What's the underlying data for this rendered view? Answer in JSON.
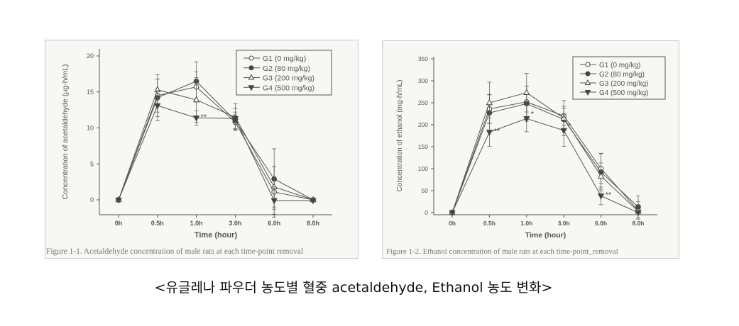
{
  "chart_data": [
    {
      "type": "line",
      "x": [
        "0h",
        "0.5h",
        "1.0h",
        "3.0h",
        "6.0h",
        "8.0h"
      ],
      "xlabel": "Time (hour)",
      "ylabel": "Concentration of acetaldehyde (μg-h/mL)",
      "ylim": [
        -2,
        21
      ],
      "yticks": [
        0,
        5,
        10,
        15,
        20
      ],
      "legend_position": "top-right",
      "caption": "Figure 1-1. Acetaldehyde concentration of male rats at each time-point removal",
      "series": [
        {
          "name": "G1 (0 mg/kg)",
          "marker": "circle-open",
          "values": [
            0,
            14.5,
            15.7,
            10.8,
            1.1,
            0
          ],
          "error": [
            0,
            2.3,
            2.1,
            1.0,
            3.5,
            0
          ]
        },
        {
          "name": "G2 (80 mg/kg)",
          "marker": "circle-filled",
          "values": [
            0,
            14.2,
            16.5,
            11.0,
            2.9,
            0
          ],
          "error": [
            0,
            2.6,
            2.7,
            1.2,
            4.2,
            0
          ]
        },
        {
          "name": "G3 (200 mg/kg)",
          "marker": "triangle-open",
          "values": [
            0,
            15.3,
            13.9,
            11.5,
            1.8,
            0
          ],
          "error": [
            0,
            2.1,
            3.1,
            1.9,
            2.8,
            0
          ]
        },
        {
          "name": "G4 (500 mg/kg)",
          "marker": "triangle-down-filled",
          "values": [
            0,
            13.1,
            11.4,
            11.3,
            -0.1,
            -0.1
          ],
          "error": [
            0,
            2.1,
            1.0,
            1.4,
            1.9,
            0
          ]
        }
      ],
      "annotations": [
        {
          "series": 3,
          "x": "1.0h",
          "text": "**"
        }
      ]
    },
    {
      "type": "line",
      "x": [
        "0h",
        "0.5h",
        "1.0h",
        "3.0h",
        "6.0h",
        "8.0h"
      ],
      "xlabel": "Time (hour)",
      "ylabel": "Concentration of ethanol (mg-h/mL)",
      "ylim": [
        -2,
        352
      ],
      "yticks": [
        0,
        50,
        100,
        150,
        200,
        250,
        300,
        350
      ],
      "legend_position": "top-right",
      "caption": "Figure 1-2. Ethanol concentration of male rats at each time-point_removal",
      "series": [
        {
          "name": "G1 (0 mg/kg)",
          "marker": "circle-open",
          "values": [
            0,
            236,
            252,
            220,
            100,
            5
          ],
          "error": [
            0,
            32,
            36,
            22,
            34,
            20
          ]
        },
        {
          "name": "G2 (80 mg/kg)",
          "marker": "circle-filled",
          "values": [
            0,
            227,
            248,
            212,
            92,
            13
          ],
          "error": [
            0,
            42,
            40,
            25,
            43,
            25
          ]
        },
        {
          "name": "G3 (200 mg/kg)",
          "marker": "triangle-open",
          "values": [
            0,
            250,
            273,
            215,
            83,
            3
          ],
          "error": [
            0,
            47,
            44,
            40,
            30,
            15
          ]
        },
        {
          "name": "G4 (500 mg/kg)",
          "marker": "triangle-down-filled",
          "values": [
            0,
            183,
            214,
            187,
            38,
            0
          ],
          "error": [
            0,
            32,
            30,
            36,
            20,
            0
          ]
        }
      ],
      "annotations": [
        {
          "series": 3,
          "x": "0.5h",
          "text": "**"
        },
        {
          "series": 3,
          "x": "1.0h",
          "text": "*"
        },
        {
          "series": 3,
          "x": "3.0h",
          "text": "*"
        },
        {
          "series": 3,
          "x": "6.0h",
          "text": "**"
        }
      ]
    }
  ],
  "caption": "<유글레나 파우더 농도별 혈중 acetaldehyde, Ethanol 농도 변화>"
}
